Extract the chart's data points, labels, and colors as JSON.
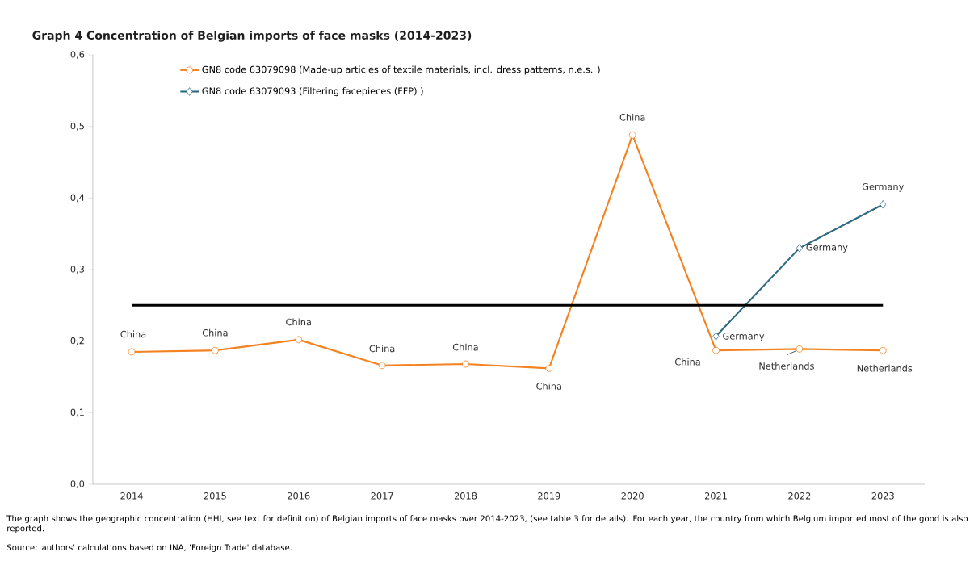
{
  "chart_data": {
    "type": "line",
    "title": "Graph 4    Concentration of Belgian imports of face masks (2014-2023)",
    "categories": [
      "2014",
      "2015",
      "2016",
      "2017",
      "2018",
      "2019",
      "2020",
      "2021",
      "2022",
      "2023"
    ],
    "series": [
      {
        "name": "GN8 code 63079098 (Made-up articles of textile materials, incl. dress patterns, n.e.s. )",
        "color": "#f58220",
        "marker": "circle",
        "values": [
          0.185,
          0.187,
          0.202,
          0.166,
          0.168,
          0.162,
          0.488,
          0.187,
          0.189,
          0.187
        ]
      },
      {
        "name": "GN8 code 63079093 (Filtering facepieces (FFP) )",
        "color": "#2e6b80",
        "marker": "diamond",
        "values": [
          null,
          null,
          null,
          null,
          null,
          null,
          null,
          0.207,
          0.33,
          0.391
        ]
      }
    ],
    "ylim": [
      0,
      0.6
    ],
    "yticks": [
      {
        "value": 0,
        "label": "0,0"
      },
      {
        "value": 0.1,
        "label": "0,1"
      },
      {
        "value": 0.2,
        "label": "0,2"
      },
      {
        "value": 0.3,
        "label": "0,3"
      },
      {
        "value": 0.4,
        "label": "0,4"
      },
      {
        "value": 0.5,
        "label": "0,5"
      },
      {
        "value": 0.6,
        "label": "0,6"
      }
    ],
    "ref_lines": [
      {
        "axis": "y",
        "value": 0.25,
        "color": "#000000"
      }
    ],
    "legend": "top left",
    "grid": false,
    "line_style": "solid",
    "annotations": [
      {
        "text": "China",
        "x": "2014",
        "y": 0.185
      },
      {
        "text": "China",
        "x": "2015",
        "y": 0.187
      },
      {
        "text": "China",
        "x": "2016",
        "y": 0.202
      },
      {
        "text": "China",
        "x": "2017",
        "y": 0.166
      },
      {
        "text": "China",
        "x": "2018",
        "y": 0.168
      },
      {
        "text": "China",
        "x": "2019",
        "y": 0.162
      },
      {
        "text": "China",
        "x": "2020",
        "y": 0.488
      },
      {
        "text": "China",
        "x": "2021",
        "y": 0.187
      },
      {
        "text": "Germany",
        "x": "2021",
        "y": 0.207
      },
      {
        "text": "Netherlands",
        "x": "2022",
        "y": 0.189
      },
      {
        "text": "Netherlands",
        "x": "2023",
        "y": 0.187
      },
      {
        "text": "Germany",
        "x": "2022",
        "y": 0.33
      },
      {
        "text": "Germany",
        "x": "2023",
        "y": 0.391
      },
      "The graph shows the geographic concentration (HHI, see text for definition) of Belgian imports of face masks over 2014-2023, (see table 3 for details). For each year, the country from which Belgium imported most of the good is also reported.",
      "Source: authors' calculations based on INA, 'Foreign Trade' database."
    ]
  }
}
